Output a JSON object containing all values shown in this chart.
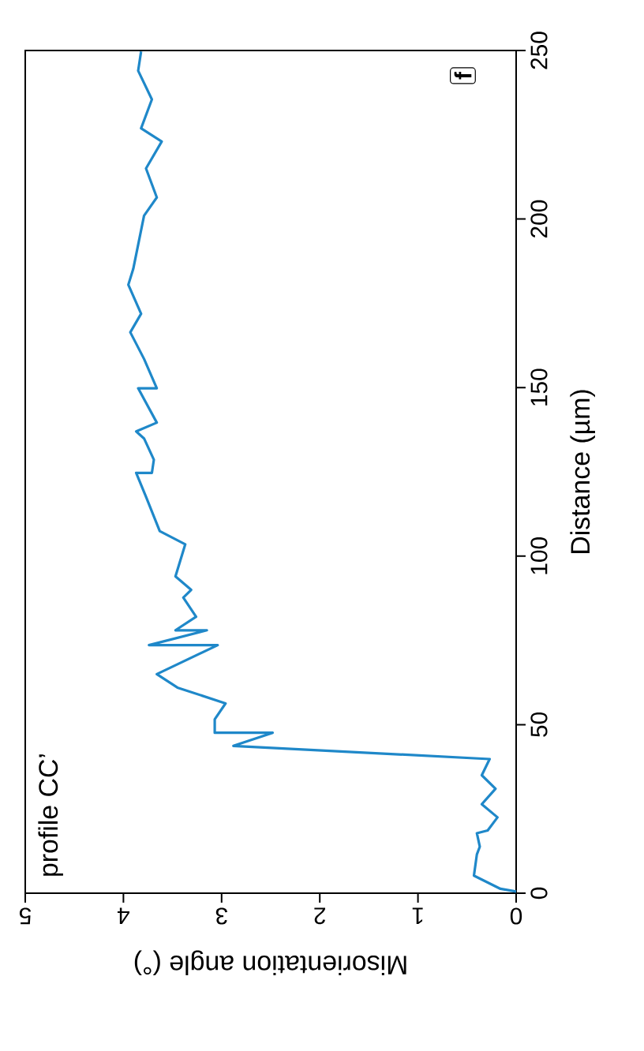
{
  "chart_data": {
    "type": "line",
    "xlabel": "Misorientation angle (°)",
    "ylabel": "Distance (µm)",
    "annotations": [
      "profile CC’",
      "f"
    ],
    "xlim": [
      5,
      0
    ],
    "xticks": [
      {
        "value": 0,
        "label": "0"
      },
      {
        "value": 1,
        "label": "1"
      },
      {
        "value": 2,
        "label": "2"
      },
      {
        "value": 3,
        "label": "3"
      },
      {
        "value": 4,
        "label": "4"
      },
      {
        "value": 5,
        "label": "5"
      }
    ],
    "ylim": [
      0,
      250
    ],
    "yticks": [
      {
        "value": 0,
        "label": "0"
      },
      {
        "value": 50,
        "label": "50"
      },
      {
        "value": 100,
        "label": "100"
      },
      {
        "value": 150,
        "label": "150"
      },
      {
        "value": 200,
        "label": "200"
      },
      {
        "value": 250,
        "label": "250"
      }
    ],
    "grid": false,
    "line_style": "solid",
    "series": [
      {
        "color": "#1f88c9",
        "x": [
          0,
          0.16,
          0.43,
          0.4,
          0.37,
          0.4,
          0.29,
          0.19,
          0.35,
          0.21,
          0.35,
          0.27,
          2.88,
          2.48,
          3.07,
          3.07,
          2.96,
          3.45,
          3.66,
          3.04,
          3.74,
          3.15,
          3.47,
          3.26,
          3.39,
          3.31,
          3.47,
          3.37,
          3.63,
          3.77,
          3.87,
          3.71,
          3.69,
          3.79,
          3.87,
          3.66,
          3.85,
          3.66,
          3.79,
          3.93,
          3.82,
          3.95,
          3.9,
          3.79,
          3.66,
          3.77,
          3.61,
          3.82,
          3.71,
          3.85,
          3.82
        ],
        "values": [
          0.5,
          1.3,
          5.2,
          11.5,
          13.8,
          17.8,
          18.6,
          22.5,
          26.4,
          31,
          35,
          39.8,
          43.7,
          47.6,
          47.6,
          51.6,
          56.3,
          61,
          65,
          73.6,
          73.6,
          78,
          78,
          82,
          87.7,
          90,
          94,
          103.5,
          107.4,
          117.6,
          124.7,
          124.7,
          128.6,
          134.9,
          137,
          139.6,
          149.8,
          149.8,
          158.5,
          166.4,
          171.9,
          180.5,
          185.2,
          201,
          206.4,
          215,
          223,
          226.9,
          235.5,
          244,
          249.7
        ]
      }
    ]
  }
}
